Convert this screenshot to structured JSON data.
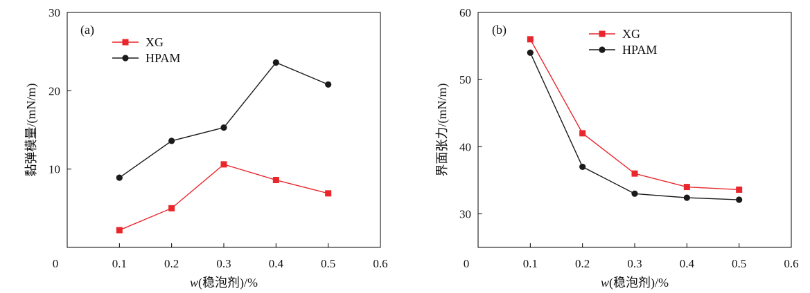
{
  "chart_data": [
    {
      "panel_label": "(a)",
      "type": "line",
      "x": [
        0.1,
        0.2,
        0.3,
        0.4,
        0.5
      ],
      "xlim": [
        0,
        0.6
      ],
      "xticks": [
        "0",
        "0.1",
        "0.2",
        "0.3",
        "0.4",
        "0.5",
        "0.6"
      ],
      "ylim": [
        0,
        30
      ],
      "yticks": [
        "10",
        "20",
        "30"
      ],
      "xlabel": {
        "italic": "w",
        "rest": "(稳泡剂)/%"
      },
      "ylabel": "黏弹模量/(mN/m)",
      "legend_position": "top-left",
      "grid": false,
      "series": [
        {
          "name": "XG",
          "color": "#e8262b",
          "marker": "square",
          "values": [
            2.2,
            5.0,
            10.6,
            8.6,
            6.9
          ]
        },
        {
          "name": "HPAM",
          "color": "#1a1a1a",
          "marker": "circle",
          "values": [
            8.9,
            13.6,
            15.3,
            23.6,
            20.8
          ]
        }
      ]
    },
    {
      "panel_label": "(b)",
      "type": "line",
      "x": [
        0.1,
        0.2,
        0.3,
        0.4,
        0.5
      ],
      "xlim": [
        0,
        0.6
      ],
      "xticks": [
        "0",
        "0.1",
        "0.2",
        "0.3",
        "0.4",
        "0.5",
        "0.6"
      ],
      "ylim": [
        25,
        60
      ],
      "yticks": [
        "30",
        "40",
        "50",
        "60"
      ],
      "xlabel": {
        "italic": "w",
        "rest": "(稳泡剂)/%"
      },
      "ylabel": "界面张力/(mN/m)",
      "legend_position": "top-center",
      "grid": false,
      "series": [
        {
          "name": "XG",
          "color": "#e8262b",
          "marker": "square",
          "values": [
            56,
            42,
            36,
            34,
            33.6
          ]
        },
        {
          "name": "HPAM",
          "color": "#1a1a1a",
          "marker": "circle",
          "values": [
            54,
            37,
            33,
            32.4,
            32.1
          ]
        }
      ]
    }
  ]
}
